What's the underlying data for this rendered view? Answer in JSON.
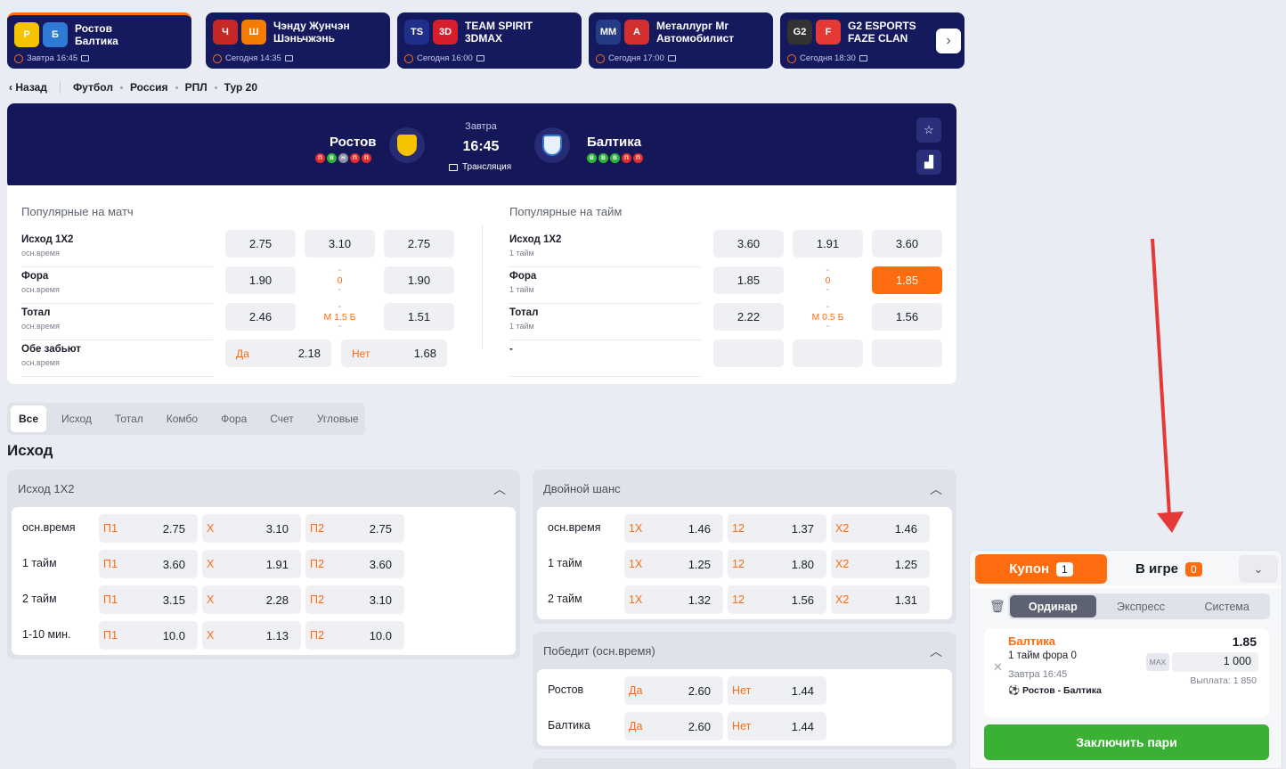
{
  "events": [
    {
      "team1": "Ростов",
      "team2": "Балтика",
      "time": "Завтра 16:45",
      "c1": "#f6c300",
      "c2": "#2e7bd6",
      "t1": "Р",
      "t2": "Б"
    },
    {
      "team1": "Чэнду Жунчэн",
      "team2": "Шэньчжэнь",
      "time": "Сегодня 14:35",
      "c1": "#c62828",
      "c2": "#f57c00",
      "t1": "Ч",
      "t2": "Ш"
    },
    {
      "team1": "TEAM SPIRIT",
      "team2": "3DMAX",
      "time": "Сегодня 16:00",
      "c1": "#1f2f8a",
      "c2": "#d81e2c",
      "t1": "TS",
      "t2": "3D"
    },
    {
      "team1": "Металлург Мг",
      "team2": "Автомобилист",
      "time": "Сегодня 17:00",
      "c1": "#253b86",
      "c2": "#d32f2f",
      "t1": "ММ",
      "t2": "А"
    },
    {
      "team1": "G2 ESPORTS",
      "team2": "FAZE CLAN",
      "time": "Сегодня 18:30",
      "c1": "#333",
      "c2": "#e53935",
      "t1": "G2",
      "t2": "F"
    }
  ],
  "breadcrumb": {
    "back": "Назад",
    "items": [
      "Футбол",
      "Россия",
      "РПЛ",
      "Тур 20"
    ]
  },
  "match": {
    "home": "Ростов",
    "away": "Балтика",
    "day": "Завтра",
    "time": "16:45",
    "stream": "Трансляция",
    "home_form": [
      "П",
      "В",
      "Н",
      "П",
      "П"
    ],
    "away_form": [
      "В",
      "В",
      "В",
      "П",
      "П"
    ]
  },
  "popular_match": {
    "title": "Популярные на матч",
    "rows": [
      {
        "label": "Исход 1X2",
        "sub": "осн.время",
        "o1": "2.75",
        "o2": "3.10",
        "o3": "2.75"
      },
      {
        "label": "Фора",
        "sub": "осн.время",
        "o1": "1.90",
        "o2": "0",
        "o3": "1.90"
      },
      {
        "label": "Тотал",
        "sub": "осн.время",
        "o1": "2.46",
        "o2": "М 1.5 Б",
        "o3": "1.51"
      },
      {
        "label": "Обе забьют",
        "sub": "осн.время",
        "yes": "Да",
        "yes_val": "2.18",
        "no": "Нет",
        "no_val": "1.68"
      }
    ]
  },
  "popular_half": {
    "title": "Популярные на тайм",
    "rows": [
      {
        "label": "Исход 1X2",
        "sub": "1 тайм",
        "o1": "3.60",
        "o2": "1.91",
        "o3": "3.60"
      },
      {
        "label": "Фора",
        "sub": "1 тайм",
        "o1": "1.85",
        "o2": "0",
        "o3": "1.85"
      },
      {
        "label": "Тотал",
        "sub": "1 тайм",
        "o1": "2.22",
        "o2": "М 0.5 Б",
        "o3": "1.56"
      },
      {
        "label": "-",
        "sub": ""
      }
    ]
  },
  "tabs": [
    "Все",
    "Исход",
    "Тотал",
    "Комбо",
    "Фора",
    "Счет",
    "Угловые"
  ],
  "section_title": "Исход",
  "outcome": {
    "title": "Исход 1X2",
    "rows": [
      {
        "label": "осн.время",
        "k1": "П1",
        "v1": "2.75",
        "k2": "Х",
        "v2": "3.10",
        "k3": "П2",
        "v3": "2.75"
      },
      {
        "label": "1 тайм",
        "k1": "П1",
        "v1": "3.60",
        "k2": "Х",
        "v2": "1.91",
        "k3": "П2",
        "v3": "3.60"
      },
      {
        "label": "2 тайм",
        "k1": "П1",
        "v1": "3.15",
        "k2": "Х",
        "v2": "2.28",
        "k3": "П2",
        "v3": "3.10"
      },
      {
        "label": "1-10 мин.",
        "k1": "П1",
        "v1": "10.0",
        "k2": "Х",
        "v2": "1.13",
        "k3": "П2",
        "v3": "10.0"
      }
    ]
  },
  "double": {
    "title": "Двойной шанс",
    "rows": [
      {
        "label": "осн.время",
        "k1": "1X",
        "v1": "1.46",
        "k2": "12",
        "v2": "1.37",
        "k3": "X2",
        "v3": "1.46"
      },
      {
        "label": "1 тайм",
        "k1": "1X",
        "v1": "1.25",
        "k2": "12",
        "v2": "1.80",
        "k3": "X2",
        "v3": "1.25"
      },
      {
        "label": "2 тайм",
        "k1": "1X",
        "v1": "1.32",
        "k2": "12",
        "v2": "1.56",
        "k3": "X2",
        "v3": "1.31"
      }
    ]
  },
  "winner": {
    "title": "Победит (осн.время)",
    "rows": [
      {
        "label": "Ростов",
        "k1": "Да",
        "v1": "2.60",
        "k2": "Нет",
        "v2": "1.44"
      },
      {
        "label": "Балтика",
        "k1": "Да",
        "v1": "2.60",
        "k2": "Нет",
        "v2": "1.44"
      }
    ]
  },
  "coupon": {
    "tab": "Купон",
    "count": "1",
    "ingame": "В игре",
    "ingame_count": "0",
    "modes": [
      "Ординар",
      "Экспресс",
      "Система"
    ],
    "bet": {
      "team": "Балтика",
      "odds": "1.85",
      "market": "1 тайм фора 0",
      "date": "Завтра 16:45",
      "match": "Ростов - Балтика",
      "max": "MAX",
      "stake": "1 000",
      "payout": "Выплата: 1 850"
    },
    "place": "Заключить пари"
  },
  "colors": {
    "accent": "#ff6b0f",
    "navy": "#141858",
    "green": "#3ab034",
    "arrow": "#e53935"
  }
}
